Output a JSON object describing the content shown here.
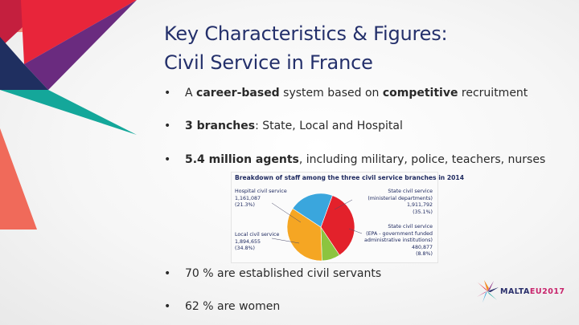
{
  "slide": {
    "title_line1": "Key Characteristics & Figures:",
    "title_line2": "Civil Service in France"
  },
  "bullets": [
    {
      "marker": "•",
      "pre": "A ",
      "b1": "career-based",
      "mid": " system based on ",
      "b2": "competitive",
      "post": " recruitment"
    },
    {
      "marker": "•",
      "b1": "3 branches",
      "post": ": State, Local and Hospital"
    },
    {
      "marker": "•",
      "b1": "5.4 million agents",
      "post": ", including military, police, teachers, nurses"
    },
    {
      "marker": "•",
      "post": "70 % are established civil servants"
    },
    {
      "marker": "•",
      "post": "62 % are women"
    }
  ],
  "chart_data": {
    "type": "pie",
    "title": "Breakdown of staff among the three civil service branches in 2014",
    "slices": [
      {
        "name": "State civil service",
        "sub": "(ministerial departments)",
        "value": "1,911,792",
        "pct": "(35.1%)",
        "percent": 35.1,
        "color": "#e3212b"
      },
      {
        "name": "State civil service",
        "sub1": "(EPA - government funded",
        "sub2": "administrative institutions)",
        "value": "480,877",
        "pct": "(8.8%)",
        "percent": 8.8,
        "color": "#8cc43f"
      },
      {
        "name": "Local civil service",
        "value": "1,894,655",
        "pct": "(34.8%)",
        "percent": 34.8,
        "color": "#f5a623"
      },
      {
        "name": "Hospital civil service",
        "value": "1,161,087",
        "pct": "(21.3%)",
        "percent": 21.3,
        "color": "#3aa6dd"
      }
    ]
  },
  "logo": {
    "text_main": "MALTA",
    "text_accent": "EU2017"
  },
  "colors": {
    "title": "#24306b",
    "deco_red": "#e8253a",
    "deco_purple": "#6a2b7f",
    "deco_navy": "#1f2f60",
    "deco_teal": "#14a79a",
    "deco_coral": "#f06a5a"
  }
}
